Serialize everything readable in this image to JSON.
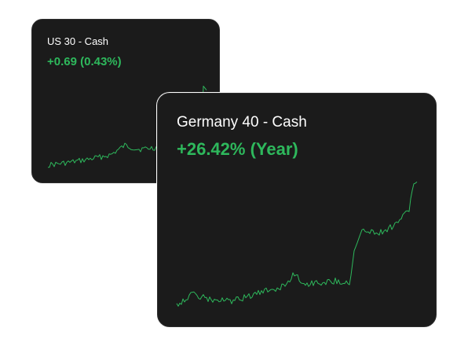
{
  "cards": [
    {
      "title": "US 30 - Cash",
      "change": "+0.69 (0.43%)",
      "accent": "#2eb85c"
    },
    {
      "title": "Germany 40 - Cash",
      "change": "+26.42% (Year)",
      "accent": "#2eb85c"
    }
  ]
}
